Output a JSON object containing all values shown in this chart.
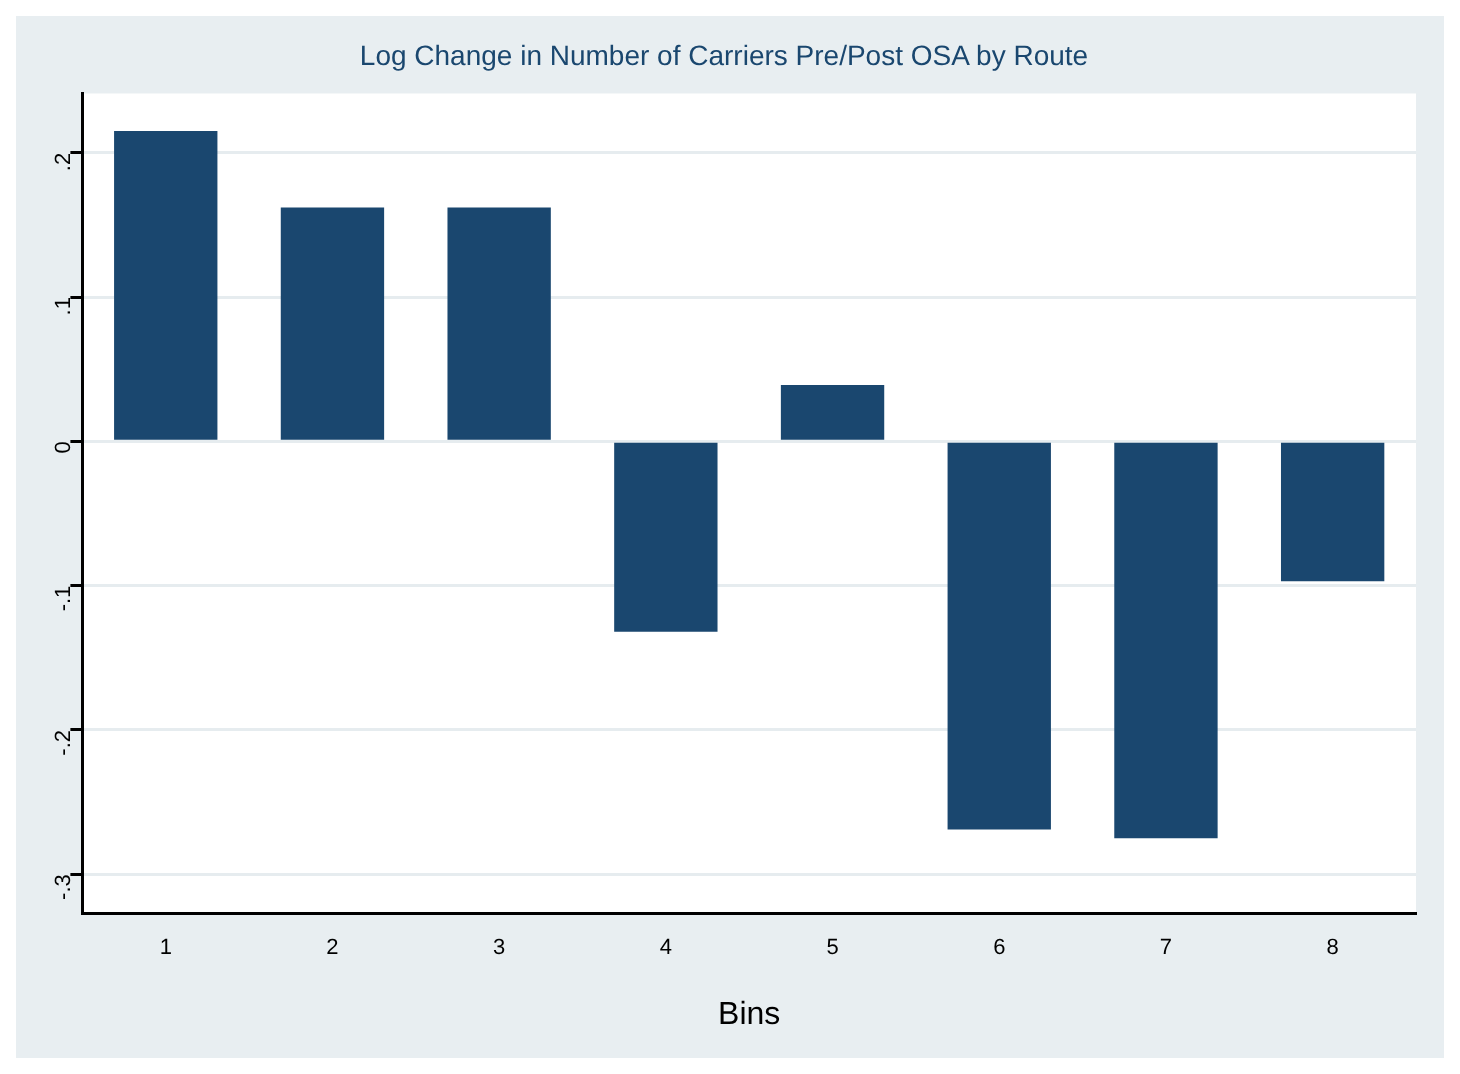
{
  "chart_data": {
    "type": "bar",
    "title": "Log Change in Number of Carriers Pre/Post OSA by Route",
    "xlabel": "Bins",
    "categories": [
      "1",
      "2",
      "3",
      "4",
      "5",
      "6",
      "7",
      "8"
    ],
    "values": [
      0.215,
      0.162,
      0.162,
      -0.132,
      0.039,
      -0.269,
      -0.275,
      -0.097
    ],
    "color": "#1a476f",
    "ylim": [
      -0.327,
      0.241
    ],
    "yticks": [
      {
        "value": -0.3,
        "label": "-.3"
      },
      {
        "value": -0.2,
        "label": "-.2"
      },
      {
        "value": -0.1,
        "label": "-.1"
      },
      0,
      {
        "value": 0.1,
        "label": ".1"
      },
      {
        "value": 0.2,
        "label": ".2"
      }
    ],
    "grid": "y",
    "legend": false
  }
}
